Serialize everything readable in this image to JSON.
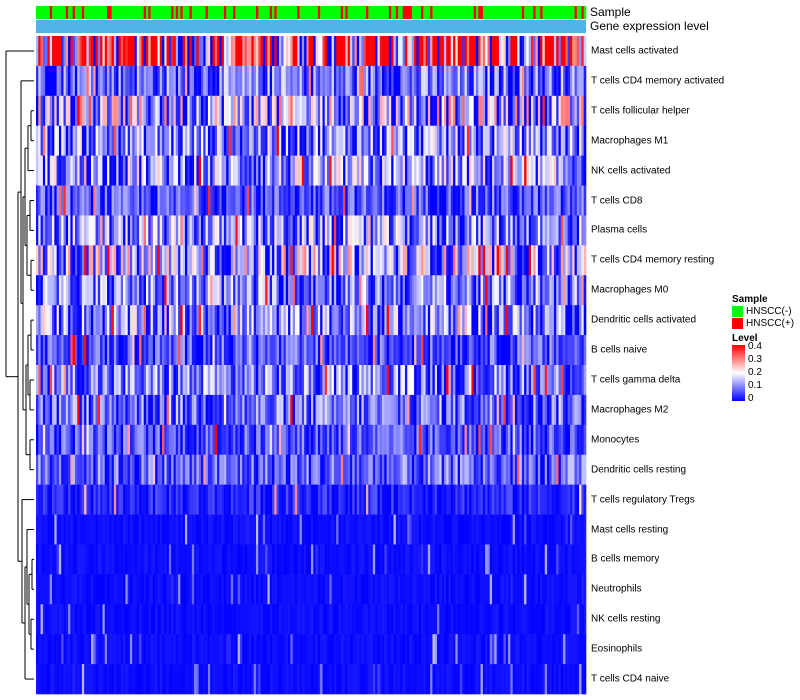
{
  "chart_data": {
    "type": "heatmap",
    "annotations": {
      "sample_label": "Sample",
      "expression_label": "Gene expression level",
      "sample_classes": [
        "HNSCC(-)",
        "HNSCC(+)"
      ],
      "sample_colors": {
        "HNSCC(-)": "#00ff00",
        "HNSCC(+)": "#ff0000"
      },
      "expression_bar_color": "#4fb3e8"
    },
    "rows": [
      {
        "name": "Mast cells activated",
        "mean": 0.3
      },
      {
        "name": "T cells CD4 memory activated",
        "mean": 0.08
      },
      {
        "name": "T cells follicular helper",
        "mean": 0.14
      },
      {
        "name": "Macrophages M1",
        "mean": 0.1
      },
      {
        "name": "NK cells activated",
        "mean": 0.11
      },
      {
        "name": "T cells CD8",
        "mean": 0.06
      },
      {
        "name": "Plasma cells",
        "mean": 0.1
      },
      {
        "name": "T cells CD4 memory resting",
        "mean": 0.13
      },
      {
        "name": "Macrophages M0",
        "mean": 0.09
      },
      {
        "name": "Dendritic cells activated",
        "mean": 0.1
      },
      {
        "name": "B cells naive",
        "mean": 0.06
      },
      {
        "name": "T cells gamma delta",
        "mean": 0.09
      },
      {
        "name": "Macrophages M2",
        "mean": 0.08
      },
      {
        "name": "Monocytes",
        "mean": 0.06
      },
      {
        "name": "Dendritic cells resting",
        "mean": 0.07
      },
      {
        "name": "T cells regulatory  Tregs",
        "mean": 0.03
      },
      {
        "name": "Mast cells resting",
        "mean": 0.01
      },
      {
        "name": "B cells memory",
        "mean": 0.01
      },
      {
        "name": "Neutrophils",
        "mean": 0.02
      },
      {
        "name": "NK cells resting",
        "mean": 0.02
      },
      {
        "name": "Eosinophils",
        "mean": 0.01
      },
      {
        "name": "T cells CD4 naive",
        "mean": 0.01
      }
    ],
    "n_samples": 240,
    "value_range": [
      0,
      0.4
    ],
    "dendrogram": "rows, left"
  },
  "legend": {
    "sample_title": "Sample",
    "sample_items": [
      "HNSCC(-)",
      "HNSCC(+)"
    ],
    "level_title": "Level",
    "level_ticks": [
      "0.4",
      "0.3",
      "0.2",
      "0.1",
      "0"
    ]
  }
}
